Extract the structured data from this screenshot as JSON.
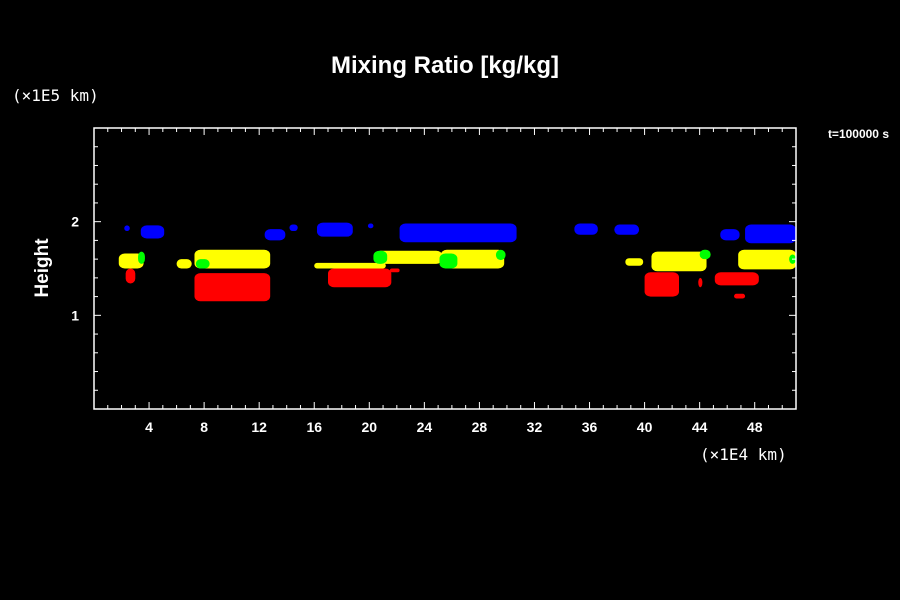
{
  "chart_data": {
    "type": "heatmap",
    "title": "Mixing Ratio [kg/kg]",
    "ylabel": "Height",
    "y_unit": "(×1E5 km)",
    "x_unit": "(×1E4 km)",
    "xlabel": "",
    "time_label": "t=100000 s",
    "xlim": [
      0,
      51
    ],
    "ylim": [
      0,
      3
    ],
    "xticks": [
      4,
      8,
      12,
      16,
      20,
      24,
      28,
      32,
      36,
      40,
      44,
      48
    ],
    "yticks": [
      1,
      2
    ],
    "colors": {
      "level1": "#0000ff",
      "level2": "#ffff00",
      "level3": "#00ff00",
      "level4": "#ff0000"
    },
    "regions": [
      {
        "level": "level1",
        "x0": 2.2,
        "x1": 2.6,
        "y0": 1.9,
        "y1": 1.96
      },
      {
        "level": "level1",
        "x0": 3.4,
        "x1": 5.1,
        "y0": 1.82,
        "y1": 1.96
      },
      {
        "level": "level1",
        "x0": 12.4,
        "x1": 13.9,
        "y0": 1.8,
        "y1": 1.92
      },
      {
        "level": "level1",
        "x0": 14.2,
        "x1": 14.8,
        "y0": 1.9,
        "y1": 1.97
      },
      {
        "level": "level1",
        "x0": 16.2,
        "x1": 18.8,
        "y0": 1.84,
        "y1": 1.99
      },
      {
        "level": "level1",
        "x0": 19.9,
        "x1": 20.3,
        "y0": 1.93,
        "y1": 1.98
      },
      {
        "level": "level1",
        "x0": 22.2,
        "x1": 30.7,
        "y0": 1.78,
        "y1": 1.98
      },
      {
        "level": "level1",
        "x0": 34.9,
        "x1": 36.6,
        "y0": 1.86,
        "y1": 1.98
      },
      {
        "level": "level1",
        "x0": 37.8,
        "x1": 39.6,
        "y0": 1.86,
        "y1": 1.97
      },
      {
        "level": "level1",
        "x0": 45.5,
        "x1": 46.9,
        "y0": 1.8,
        "y1": 1.92
      },
      {
        "level": "level1",
        "x0": 47.3,
        "x1": 51,
        "y0": 1.77,
        "y1": 1.97
      },
      {
        "level": "level2",
        "x0": 1.8,
        "x1": 3.6,
        "y0": 1.5,
        "y1": 1.66
      },
      {
        "level": "level2",
        "x0": 6,
        "x1": 7.1,
        "y0": 1.5,
        "y1": 1.6
      },
      {
        "level": "level2",
        "x0": 7.3,
        "x1": 12.8,
        "y0": 1.5,
        "y1": 1.7
      },
      {
        "level": "level2",
        "x0": 16,
        "x1": 21.2,
        "y0": 1.5,
        "y1": 1.56
      },
      {
        "level": "level2",
        "x0": 20.4,
        "x1": 25.3,
        "y0": 1.55,
        "y1": 1.69
      },
      {
        "level": "level2",
        "x0": 25.2,
        "x1": 29.8,
        "y0": 1.5,
        "y1": 1.7
      },
      {
        "level": "level2",
        "x0": 38.6,
        "x1": 39.9,
        "y0": 1.53,
        "y1": 1.61
      },
      {
        "level": "level2",
        "x0": 40.5,
        "x1": 44.5,
        "y0": 1.47,
        "y1": 1.68
      },
      {
        "level": "level2",
        "x0": 46.8,
        "x1": 51,
        "y0": 1.49,
        "y1": 1.7
      },
      {
        "level": "level3",
        "x0": 3.2,
        "x1": 3.7,
        "y0": 1.55,
        "y1": 1.68
      },
      {
        "level": "level3",
        "x0": 7.4,
        "x1": 8.4,
        "y0": 1.5,
        "y1": 1.6
      },
      {
        "level": "level3",
        "x0": 20.3,
        "x1": 21.3,
        "y0": 1.55,
        "y1": 1.69
      },
      {
        "level": "level3",
        "x0": 25.1,
        "x1": 26.4,
        "y0": 1.5,
        "y1": 1.66
      },
      {
        "level": "level3",
        "x0": 29.2,
        "x1": 29.9,
        "y0": 1.59,
        "y1": 1.7
      },
      {
        "level": "level3",
        "x0": 44,
        "x1": 44.8,
        "y0": 1.6,
        "y1": 1.7
      },
      {
        "level": "level3",
        "x0": 50.5,
        "x1": 51,
        "y0": 1.55,
        "y1": 1.65
      },
      {
        "level": "level4",
        "x0": 2.3,
        "x1": 3,
        "y0": 1.34,
        "y1": 1.5
      },
      {
        "level": "level4",
        "x0": 7.3,
        "x1": 12.8,
        "y0": 1.15,
        "y1": 1.45
      },
      {
        "level": "level4",
        "x0": 17,
        "x1": 21.6,
        "y0": 1.3,
        "y1": 1.5
      },
      {
        "level": "level4",
        "x0": 21.5,
        "x1": 22.2,
        "y0": 1.46,
        "y1": 1.5
      },
      {
        "level": "level4",
        "x0": 40,
        "x1": 42.5,
        "y0": 1.2,
        "y1": 1.46
      },
      {
        "level": "level4",
        "x0": 43.9,
        "x1": 44.2,
        "y0": 1.3,
        "y1": 1.4
      },
      {
        "level": "level4",
        "x0": 45.1,
        "x1": 48.3,
        "y0": 1.32,
        "y1": 1.46
      },
      {
        "level": "level4",
        "x0": 46.5,
        "x1": 47.3,
        "y0": 1.18,
        "y1": 1.23
      }
    ]
  }
}
